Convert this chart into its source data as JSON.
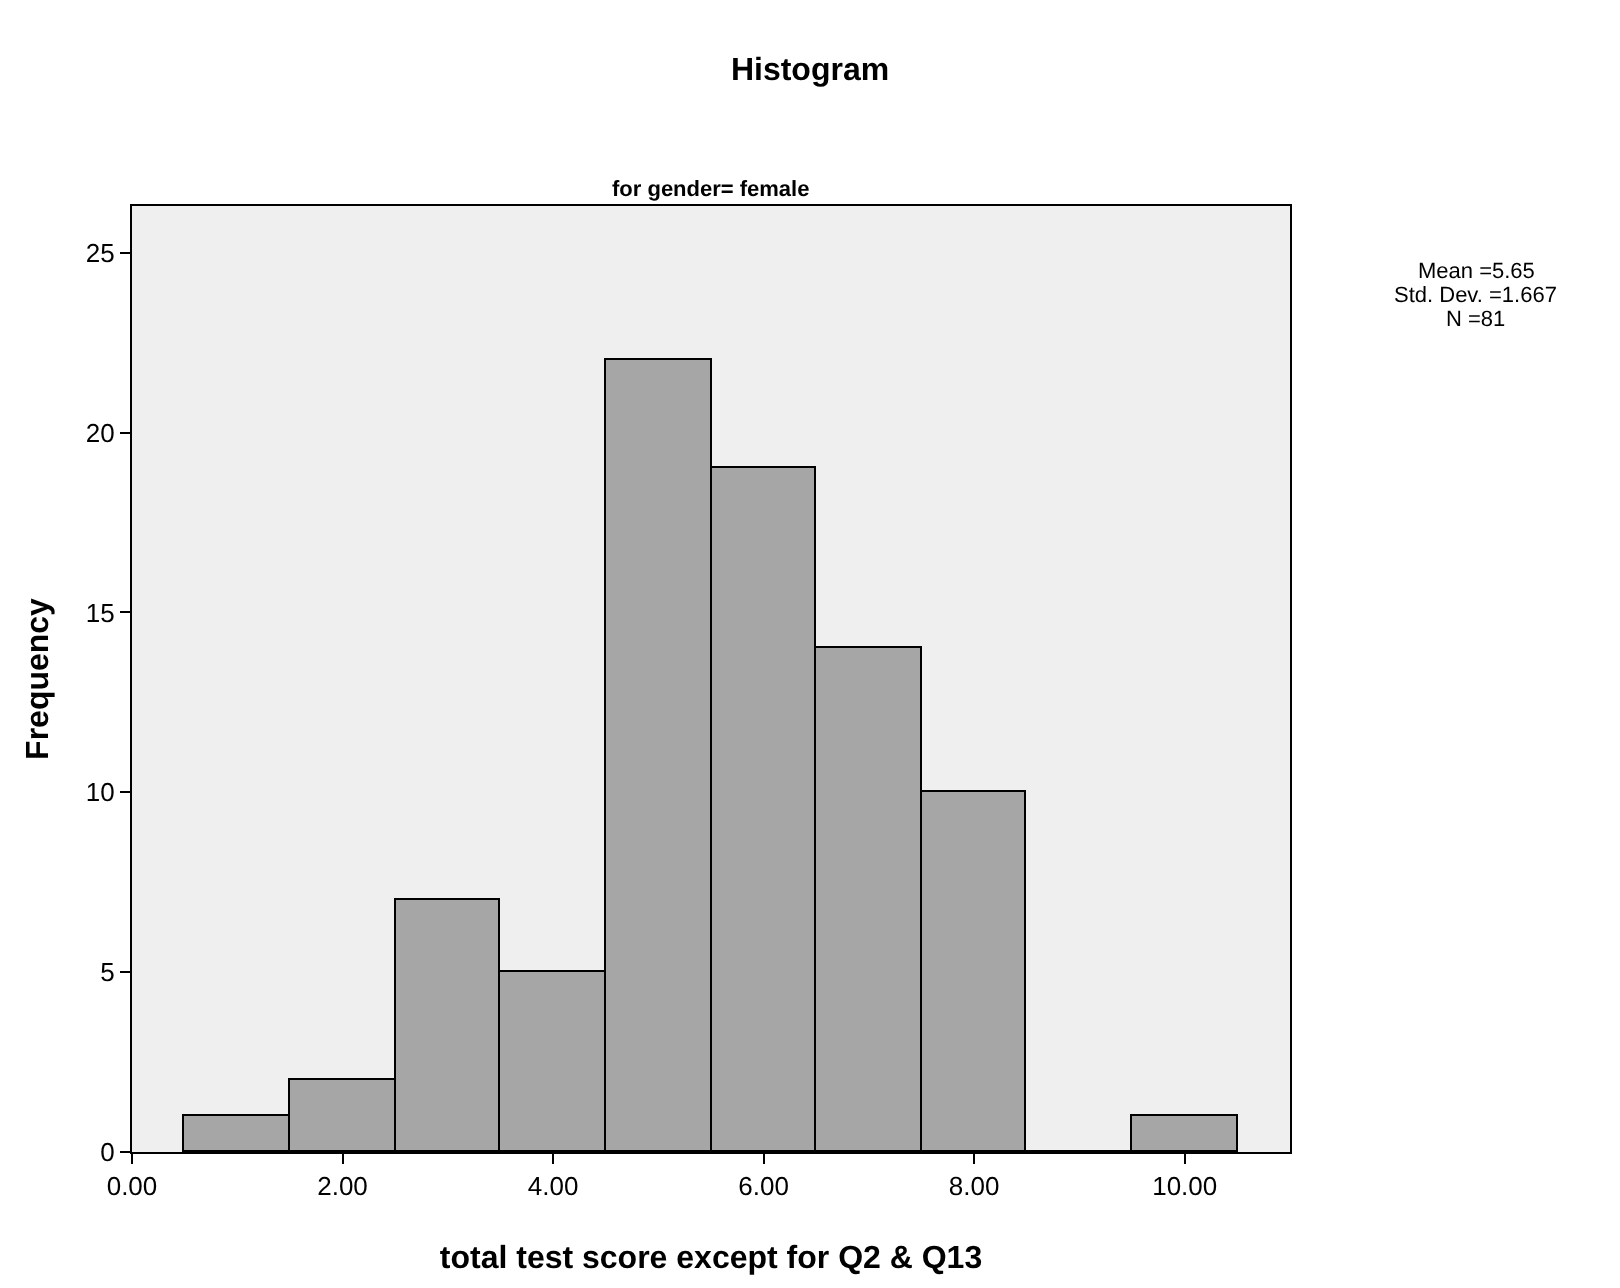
{
  "chart_data": {
    "type": "histogram",
    "title": "Histogram",
    "subtitle": "for gender= female",
    "xlabel": "total test score except for Q2 & Q13",
    "ylabel": "Frequency",
    "bins": [
      0.5,
      1.5,
      2.5,
      3.5,
      4.5,
      5.5,
      6.5,
      7.5,
      8.5,
      9.5,
      10.5
    ],
    "values": [
      1,
      2,
      7,
      5,
      22,
      19,
      14,
      10,
      0,
      1
    ],
    "color": "#a6a6a6",
    "xlim": [
      0,
      11
    ],
    "xticks": [
      {
        "value": 0,
        "label": "0.00"
      },
      {
        "value": 2,
        "label": "2.00"
      },
      {
        "value": 4,
        "label": "4.00"
      },
      {
        "value": 6,
        "label": "6.00"
      },
      {
        "value": 8,
        "label": "8.00"
      },
      {
        "value": 10,
        "label": "10.00"
      }
    ],
    "ylim": [
      0,
      26.3
    ],
    "yticks": [
      0,
      5,
      10,
      15,
      20,
      25
    ],
    "grid": false,
    "legend": false,
    "annotations": [
      "Mean =5.65",
      "Std. Dev. =1.667",
      "N =81"
    ]
  }
}
